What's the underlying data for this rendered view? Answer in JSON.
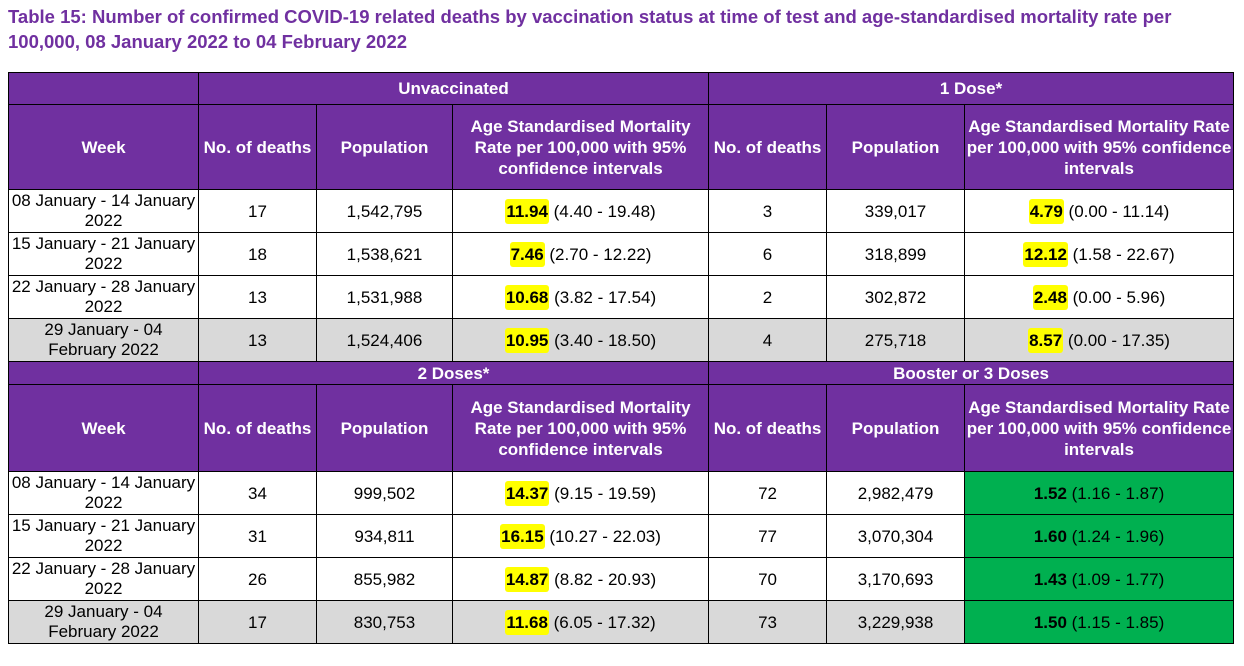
{
  "title": "Table 15: Number of confirmed COVID-19 related deaths by vaccination status at time of test and age-standardised mortality rate per 100,000, 08 January 2022 to 04 February 2022",
  "headers": {
    "week": "Week",
    "deaths": "No. of deaths",
    "population": "Population",
    "asmr_left": "Age Standardised Mortality Rate per 100,000 with 95% confidence intervals",
    "asmr_right": "Age Standardised Mortality Rate per 100,000 with 95% confidence intervals"
  },
  "groups": {
    "unvaccinated": "Unvaccinated",
    "one_dose": "1 Dose*",
    "two_doses": "2 Doses*",
    "booster": "Booster or 3 Doses"
  },
  "section1": [
    {
      "week": "08 January - 14 January 2022",
      "d1": "17",
      "p1": "1,542,795",
      "r1": "11.94",
      "c1": " (4.40 - 19.48)",
      "d2": "3",
      "p2": "339,017",
      "r2": "4.79",
      "c2": " (0.00 - 11.14)"
    },
    {
      "week": "15 January - 21 January 2022",
      "d1": "18",
      "p1": "1,538,621",
      "r1": "7.46",
      "c1": " (2.70 - 12.22)",
      "d2": "6",
      "p2": "318,899",
      "r2": "12.12",
      "c2": " (1.58 - 22.67)"
    },
    {
      "week": "22 January - 28 January 2022",
      "d1": "13",
      "p1": "1,531,988",
      "r1": "10.68",
      "c1": " (3.82 - 17.54)",
      "d2": "2",
      "p2": "302,872",
      "r2": "2.48",
      "c2": " (0.00 - 5.96)"
    },
    {
      "week": "29 January - 04 February 2022",
      "d1": "13",
      "p1": "1,524,406",
      "r1": "10.95",
      "c1": " (3.40 - 18.50)",
      "d2": "4",
      "p2": "275,718",
      "r2": "8.57",
      "c2": " (0.00 - 17.35)"
    }
  ],
  "section2": [
    {
      "week": "08 January - 14 January 2022",
      "d1": "34",
      "p1": "999,502",
      "r1": "14.37",
      "c1": " (9.15 - 19.59)",
      "d2": "72",
      "p2": "2,982,479",
      "r2": "1.52",
      "c2": " (1.16 - 1.87)"
    },
    {
      "week": "15 January - 21 January 2022",
      "d1": "31",
      "p1": "934,811",
      "r1": "16.15",
      "c1": " (10.27 - 22.03)",
      "d2": "77",
      "p2": "3,070,304",
      "r2": "1.60",
      "c2": " (1.24 - 1.96)"
    },
    {
      "week": "22 January - 28 January 2022",
      "d1": "26",
      "p1": "855,982",
      "r1": "14.87",
      "c1": " (8.82 - 20.93)",
      "d2": "70",
      "p2": "3,170,693",
      "r2": "1.43",
      "c2": " (1.09 - 1.77)"
    },
    {
      "week": "29 January - 04 February 2022",
      "d1": "17",
      "p1": "830,753",
      "r1": "11.68",
      "c1": " (6.05 - 17.32)",
      "d2": "73",
      "p2": "3,229,938",
      "r2": "1.50",
      "c2": " (1.15 - 1.85)"
    }
  ],
  "colors": {
    "purple": "#7030a0",
    "highlight_yellow": "#ffff00",
    "booster_green": "#00b050",
    "shade_gray": "#d9d9d9"
  }
}
